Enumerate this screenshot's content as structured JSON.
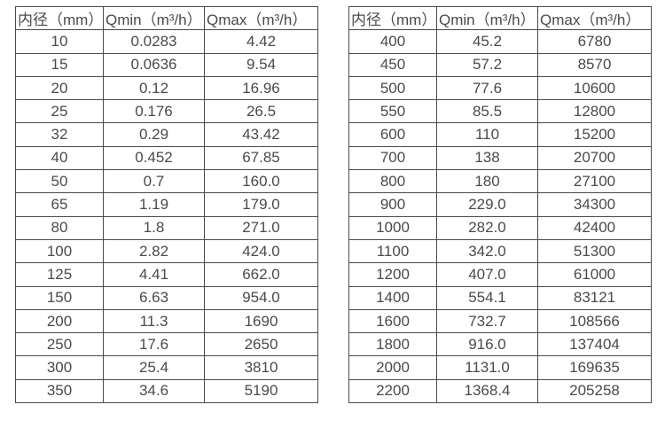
{
  "colors": {
    "background": "#ffffff",
    "border": "#4a4a4a",
    "text": "#4a4a4a"
  },
  "tables": [
    {
      "name": "small-diameter-flow-table",
      "headers": [
        "内径（mm）",
        "Qmin（m³/h）",
        "Qmax（m³/h）"
      ],
      "rows": [
        [
          "10",
          "0.0283",
          "4.42"
        ],
        [
          "15",
          "0.0636",
          "9.54"
        ],
        [
          "20",
          "0.12",
          "16.96"
        ],
        [
          "25",
          "0.176",
          "26.5"
        ],
        [
          "32",
          "0.29",
          "43.42"
        ],
        [
          "40",
          "0.452",
          "67.85"
        ],
        [
          "50",
          "0.7",
          "160.0"
        ],
        [
          "65",
          "1.19",
          "179.0"
        ],
        [
          "80",
          "1.8",
          "271.0"
        ],
        [
          "100",
          "2.82",
          "424.0"
        ],
        [
          "125",
          "4.41",
          "662.0"
        ],
        [
          "150",
          "6.63",
          "954.0"
        ],
        [
          "200",
          "11.3",
          "1690"
        ],
        [
          "250",
          "17.6",
          "2650"
        ],
        [
          "300",
          "25.4",
          "3810"
        ],
        [
          "350",
          "34.6",
          "5190"
        ]
      ]
    },
    {
      "name": "large-diameter-flow-table",
      "headers": [
        "内径（mm）",
        "Qmin（m³/h）",
        "Qmax（m³/h）"
      ],
      "rows": [
        [
          "400",
          "45.2",
          "6780"
        ],
        [
          "450",
          "57.2",
          "8570"
        ],
        [
          "500",
          "77.6",
          "10600"
        ],
        [
          "550",
          "85.5",
          "12800"
        ],
        [
          "600",
          "110",
          "15200"
        ],
        [
          "700",
          "138",
          "20700"
        ],
        [
          "800",
          "180",
          "27100"
        ],
        [
          "900",
          "229.0",
          "34300"
        ],
        [
          "1000",
          "282.0",
          "42400"
        ],
        [
          "1100",
          "342.0",
          "51300"
        ],
        [
          "1200",
          "407.0",
          "61000"
        ],
        [
          "1400",
          "554.1",
          "83121"
        ],
        [
          "1600",
          "732.7",
          "108566"
        ],
        [
          "1800",
          "916.0",
          "137404"
        ],
        [
          "2000",
          "1131.0",
          "169635"
        ],
        [
          "2200",
          "1368.4",
          "205258"
        ]
      ]
    }
  ]
}
